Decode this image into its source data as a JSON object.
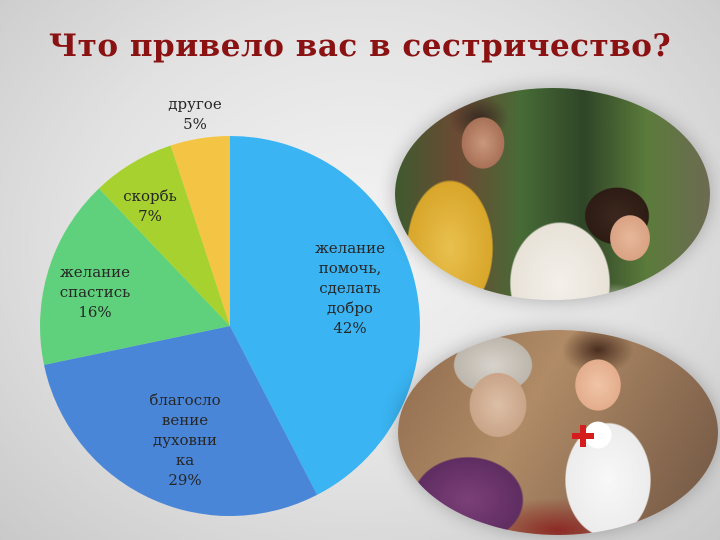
{
  "title": "Что привело вас в сестричество?",
  "chart_data": {
    "type": "pie",
    "start_angle_deg": 0,
    "direction": "clockwise",
    "slices": [
      {
        "label_lines": [
          "желание",
          "помочь,",
          "сделать",
          "добро",
          "42%"
        ],
        "value": 42,
        "color": "#3ab4f2"
      },
      {
        "label_lines": [
          "благосло",
          "вение",
          "духовни",
          "ка",
          "29%"
        ],
        "value": 29,
        "color": "#4a86d8"
      },
      {
        "label_lines": [
          "желание",
          "спастись",
          "16%"
        ],
        "value": 16,
        "color": "#5fd17c"
      },
      {
        "label_lines": [
          "скорбь",
          "7%"
        ],
        "value": 7,
        "color": "#a6d12f"
      },
      {
        "label_lines": [
          "другое",
          "5%"
        ],
        "value": 5,
        "color": "#f4c545"
      }
    ]
  },
  "images": [
    {
      "name": "priest-blessing-photo"
    },
    {
      "name": "nurse-with-elderly-woman-photo"
    }
  ]
}
